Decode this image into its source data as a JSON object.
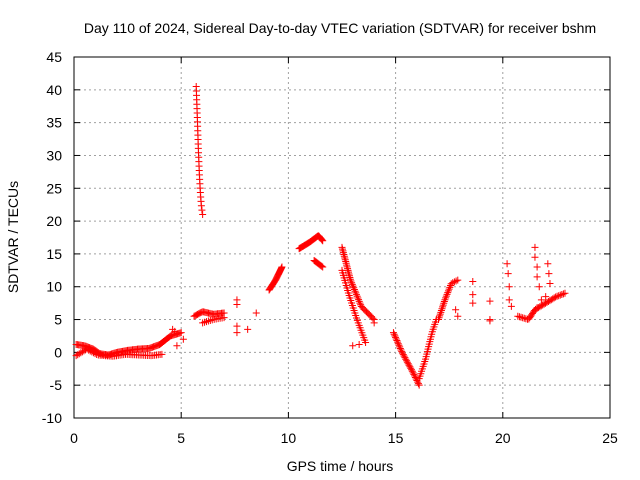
{
  "chart_data": {
    "type": "scatter",
    "title": "Day 110 of 2024, Sidereal Day-to-day VTEC variation (SDTVAR) for receiver bshm",
    "xlabel": "GPS time / hours",
    "ylabel": "SDTVAR / TECUs",
    "xlim": [
      0,
      25
    ],
    "ylim": [
      -10,
      45
    ],
    "xticks": [
      0,
      5,
      10,
      15,
      20,
      25
    ],
    "yticks": [
      -10,
      -5,
      0,
      5,
      10,
      15,
      20,
      25,
      30,
      35,
      40,
      45
    ],
    "grid": true,
    "marker": "+",
    "color": "#ff0000",
    "segments": [
      {
        "points": [
          [
            0.1,
            1.2
          ],
          [
            0.5,
            1.0
          ],
          [
            0.9,
            0.5
          ],
          [
            1.2,
            -0.2
          ],
          [
            1.6,
            -0.4
          ],
          [
            2.0,
            0.0
          ],
          [
            2.5,
            0.3
          ],
          [
            3.0,
            0.5
          ],
          [
            3.5,
            0.6
          ],
          [
            4.0,
            1.2
          ],
          [
            4.5,
            2.5
          ],
          [
            5.0,
            3.0
          ]
        ],
        "count": 90
      },
      {
        "points": [
          [
            0.1,
            -0.5
          ],
          [
            0.6,
            0.5
          ],
          [
            1.1,
            -0.4
          ],
          [
            1.8,
            -0.6
          ],
          [
            2.4,
            -0.3
          ],
          [
            3.0,
            -0.4
          ],
          [
            3.6,
            -0.5
          ],
          [
            4.1,
            -0.3
          ]
        ],
        "count": 50
      },
      {
        "points": [
          [
            5.7,
            40.5
          ],
          [
            5.75,
            36
          ],
          [
            5.8,
            31
          ],
          [
            5.85,
            27
          ],
          [
            5.9,
            24
          ],
          [
            5.95,
            22
          ],
          [
            6.0,
            21
          ]
        ],
        "count": 30
      },
      {
        "points": [
          [
            5.6,
            5.5
          ],
          [
            6.0,
            6.2
          ],
          [
            6.5,
            5.8
          ],
          [
            7.0,
            6.0
          ]
        ],
        "count": 25
      },
      {
        "points": [
          [
            6.0,
            4.5
          ],
          [
            6.5,
            5.0
          ],
          [
            7.0,
            5.3
          ]
        ],
        "count": 12
      },
      {
        "points": [
          [
            9.1,
            9.5
          ],
          [
            9.4,
            11.0
          ],
          [
            9.7,
            13.0
          ]
        ],
        "count": 25
      },
      {
        "points": [
          [
            10.5,
            15.8
          ],
          [
            11.0,
            16.8
          ],
          [
            11.4,
            17.8
          ],
          [
            11.6,
            17.0
          ]
        ],
        "count": 30
      },
      {
        "points": [
          [
            11.2,
            14.0
          ],
          [
            11.6,
            13.0
          ]
        ],
        "count": 10
      },
      {
        "points": [
          [
            12.5,
            16.0
          ],
          [
            12.9,
            11.0
          ],
          [
            13.4,
            7.0
          ],
          [
            14.0,
            5.0
          ]
        ],
        "count": 45
      },
      {
        "points": [
          [
            12.5,
            12.5
          ],
          [
            12.8,
            9.0
          ],
          [
            13.2,
            5.0
          ],
          [
            13.6,
            1.5
          ]
        ],
        "count": 30
      },
      {
        "points": [
          [
            14.9,
            3.0
          ],
          [
            15.3,
            0.0
          ],
          [
            15.8,
            -3.0
          ],
          [
            16.1,
            -5.0
          ]
        ],
        "count": 35
      },
      {
        "points": [
          [
            16.1,
            -4.0
          ],
          [
            16.4,
            -1.0
          ],
          [
            16.7,
            3.0
          ],
          [
            16.9,
            5.0
          ]
        ],
        "count": 25
      },
      {
        "points": [
          [
            17.0,
            5.0
          ],
          [
            17.3,
            8.0
          ],
          [
            17.6,
            10.5
          ],
          [
            17.9,
            11.0
          ]
        ],
        "count": 25
      },
      {
        "points": [
          [
            20.7,
            5.5
          ],
          [
            21.2,
            5.0
          ],
          [
            21.5,
            6.5
          ],
          [
            22.0,
            7.5
          ],
          [
            22.5,
            8.5
          ],
          [
            22.9,
            9.0
          ]
        ],
        "count": 35
      }
    ],
    "points": [
      [
        4.6,
        3.5
      ],
      [
        4.7,
        3.2
      ],
      [
        5.1,
        2.0
      ],
      [
        4.8,
        1.0
      ],
      [
        7.6,
        8.0
      ],
      [
        7.6,
        7.3
      ],
      [
        7.6,
        4.0
      ],
      [
        7.6,
        3.0
      ],
      [
        8.1,
        3.5
      ],
      [
        8.5,
        6.0
      ],
      [
        13.0,
        1.0
      ],
      [
        13.3,
        1.2
      ],
      [
        14.0,
        4.5
      ],
      [
        17.8,
        6.5
      ],
      [
        17.9,
        5.5
      ],
      [
        18.6,
        10.8
      ],
      [
        18.6,
        8.8
      ],
      [
        18.6,
        7.5
      ],
      [
        19.4,
        7.8
      ],
      [
        19.4,
        4.8
      ],
      [
        19.4,
        5.0
      ],
      [
        20.2,
        13.5
      ],
      [
        20.25,
        12.0
      ],
      [
        20.3,
        10.0
      ],
      [
        20.3,
        8.0
      ],
      [
        20.4,
        7.0
      ],
      [
        21.5,
        16.0
      ],
      [
        21.5,
        14.5
      ],
      [
        21.6,
        13.0
      ],
      [
        21.6,
        11.5
      ],
      [
        21.7,
        10.0
      ],
      [
        22.1,
        13.5
      ],
      [
        22.15,
        12.0
      ],
      [
        22.2,
        10.5
      ],
      [
        22.0,
        8.5
      ],
      [
        21.8,
        8.0
      ],
      [
        21.6,
        6.8
      ]
    ]
  }
}
